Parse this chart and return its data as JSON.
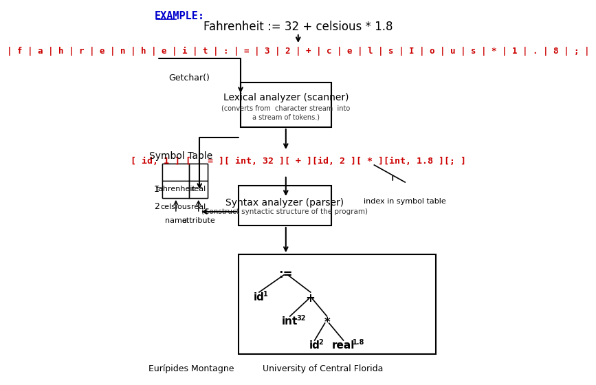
{
  "title_example": "EXAMPLE:",
  "title_formula": "Fahrenheit := 32 + celsious * 1.8",
  "char_stream": "| f | a | h | r | e | n | h | e | i | t | : | = | 3 | 2 | + | c | e | l | s | I | o | u | s | * | 1 | . | 8 | ; |",
  "lexical_box_title": "Lexical analyzer (scanner)",
  "lexical_box_sub": "(converts from  character stream  into\na stream of tokens.)",
  "token_stream": "[ id, 1 ] [ : = ][ int, 32 ][ + ][id, 2 ][ * ][int, 1.8 ][; ]",
  "syntax_box_title": "Syntax analyzer (parser)",
  "syntax_box_sub": "(Construct syntactic structure of the program)",
  "getchar_label": "Getchar()",
  "symbol_table_title": "Symbol Table",
  "symbol_row1_name": "fahrenheit",
  "symbol_row1_attr": "real",
  "symbol_row2_name": "celsious",
  "symbol_row2_attr": "real",
  "sym_row1_num": "1",
  "sym_row2_num": "2",
  "name_label": "name",
  "attribute_label": "attribute",
  "index_label": "index in symbol table",
  "footer_left": "Eurípides Montagne",
  "footer_right": "University of Central Florida",
  "bg_color": "#ffffff",
  "red_color": "#cc0000",
  "blue_color": "#0000cc",
  "black_color": "#000000"
}
